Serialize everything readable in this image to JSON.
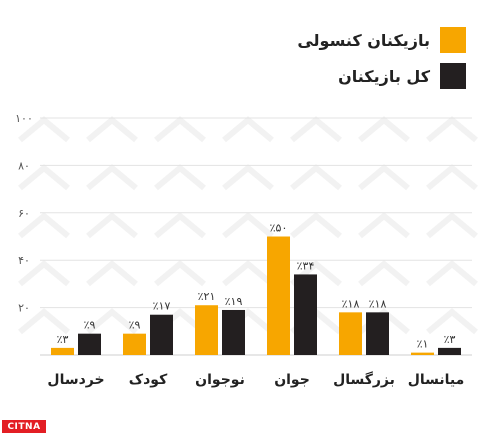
{
  "chart_data": {
    "type": "bar",
    "categories": [
      "خردسال",
      "کودک",
      "نوجوان",
      "جوان",
      "بزرگسال",
      "میانسال"
    ],
    "series": [
      {
        "name": "بازیکنان کنسولی",
        "color": "#f7a600",
        "values": [
          3,
          9,
          21,
          50,
          18,
          1
        ],
        "labels": [
          "٪۳",
          "٪۹",
          "٪۲۱",
          "٪۵۰",
          "٪۱۸",
          "٪۱"
        ]
      },
      {
        "name": "کل بازیکنان",
        "color": "#231f20",
        "values": [
          9,
          17,
          19,
          34,
          18,
          3
        ],
        "labels": [
          "٪۹",
          "٪۱۷",
          "٪۱۹",
          "٪۳۴",
          "٪۱۸",
          "٪۳"
        ]
      }
    ],
    "y_ticks": [
      {
        "value": 100,
        "label": "۱۰۰"
      },
      {
        "value": 80,
        "label": "۸۰"
      },
      {
        "value": 60,
        "label": "۶۰"
      },
      {
        "value": 40,
        "label": "۴۰"
      },
      {
        "value": 20,
        "label": "۲۰"
      }
    ],
    "ylim": [
      0,
      100
    ],
    "grid": true,
    "legend_position": "top-right"
  },
  "watermark": {
    "text": "CITNA"
  }
}
